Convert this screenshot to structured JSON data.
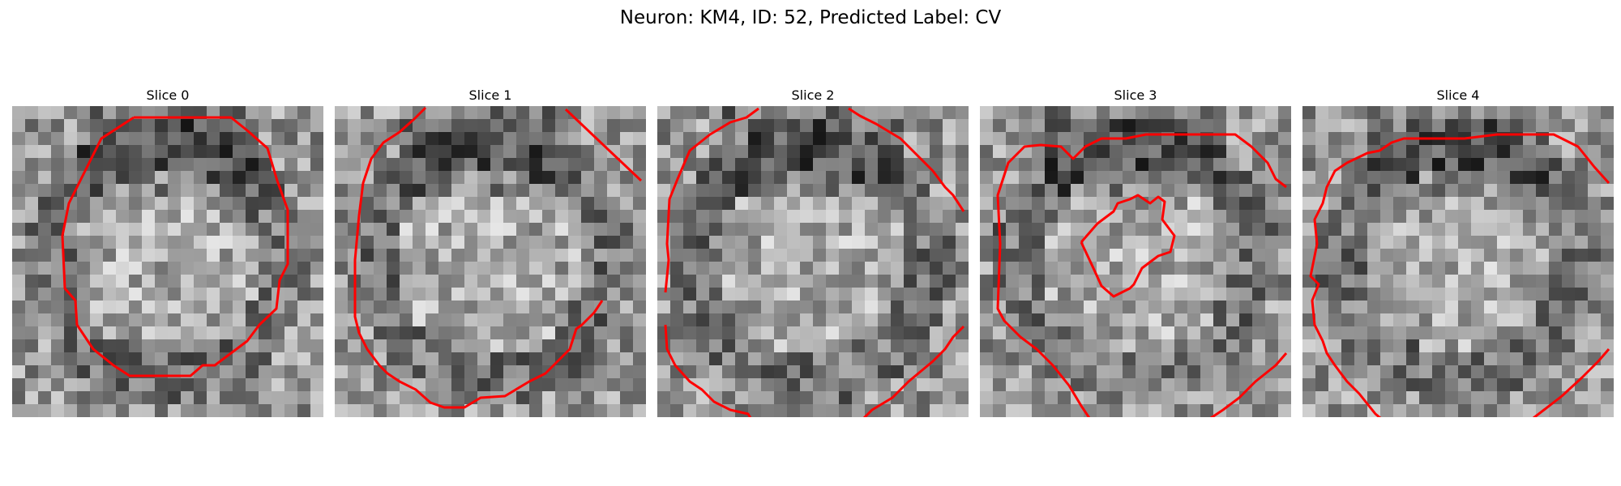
{
  "figure": {
    "title": "Neuron: KM4, ID: 52, Predicted Label: CV"
  },
  "panels": [
    {
      "title": "Slice 0"
    },
    {
      "title": "Slice 1"
    },
    {
      "title": "Slice 2"
    },
    {
      "title": "Slice 3"
    },
    {
      "title": "Slice 4"
    }
  ],
  "style": {
    "contour_color": "#ff0000",
    "colormap": "gray"
  }
}
